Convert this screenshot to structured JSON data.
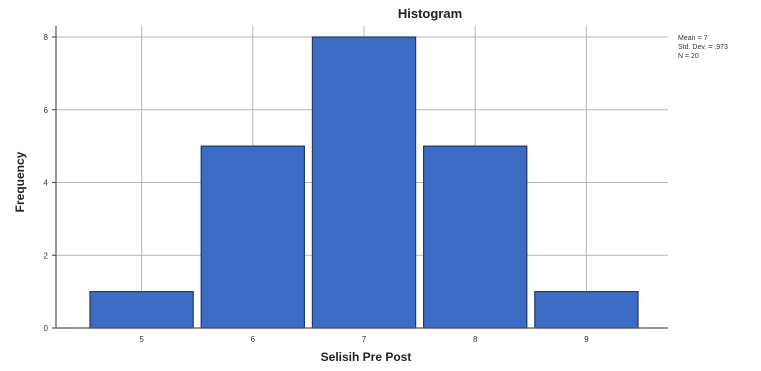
{
  "chart_data": {
    "type": "bar",
    "title": "Histogram",
    "xlabel": "Selisih Pre Post",
    "ylabel": "Frequency",
    "categories": [
      "5",
      "6",
      "7",
      "8",
      "9"
    ],
    "values": [
      1,
      5,
      8,
      5,
      1
    ],
    "ylim": [
      0,
      8
    ],
    "yticks": [
      "0",
      "2",
      "4",
      "6",
      "8"
    ],
    "grid": true,
    "bar_color": "#3d6cc4",
    "stats": {
      "mean": "Mean = 7",
      "std_dev": "Std. Dev. = .973",
      "n": "N = 20"
    }
  }
}
